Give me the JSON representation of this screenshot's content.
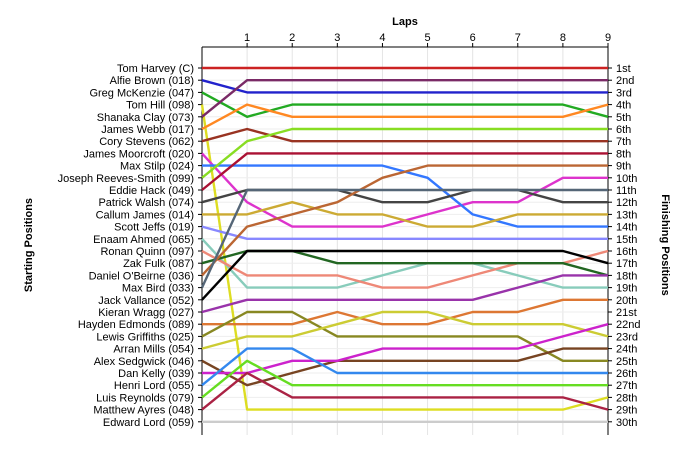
{
  "chart_data": {
    "type": "line",
    "title": "",
    "xlabel": "Laps",
    "ylabel_left": "Starting Positions",
    "ylabel_right": "Finishing Positions",
    "laps": [
      0,
      1,
      2,
      3,
      4,
      5,
      6,
      7,
      8,
      9
    ],
    "lap_tick_labels": [
      "1",
      "2",
      "3",
      "4",
      "5",
      "6",
      "7",
      "8",
      "9"
    ],
    "finishing_labels": [
      "1st",
      "2nd",
      "3rd",
      "4th",
      "5th",
      "6th",
      "7th",
      "8th",
      "9th",
      "10th",
      "11th",
      "12th",
      "13th",
      "14th",
      "15th",
      "16th",
      "17th",
      "18th",
      "19th",
      "20th",
      "21st",
      "22nd",
      "23rd",
      "24th",
      "25th",
      "26th",
      "27th",
      "28th",
      "29th",
      "30th"
    ],
    "series": [
      {
        "name": "Tom Harvey (C)",
        "color": "#cc2222",
        "positions": [
          1,
          1,
          1,
          1,
          1,
          1,
          1,
          1,
          1,
          1
        ]
      },
      {
        "name": "Alfie Brown (018)",
        "color": "#2222cc",
        "positions": [
          2,
          3,
          3,
          3,
          3,
          3,
          3,
          3,
          3,
          3
        ]
      },
      {
        "name": "Greg McKenzie (047)",
        "color": "#22aa22",
        "positions": [
          3,
          5,
          4,
          4,
          4,
          4,
          4,
          4,
          4,
          5
        ]
      },
      {
        "name": "Tom Hill (098)",
        "color": "#dddd22",
        "positions": [
          4,
          29,
          29,
          29,
          29,
          29,
          29,
          29,
          29,
          28
        ]
      },
      {
        "name": "Shanaka Clay (073)",
        "color": "#7a2a66",
        "positions": [
          5,
          2,
          2,
          2,
          2,
          2,
          2,
          2,
          2,
          2
        ]
      },
      {
        "name": "James Webb (017)",
        "color": "#ff8822",
        "positions": [
          6,
          4,
          5,
          5,
          5,
          5,
          5,
          5,
          5,
          4
        ]
      },
      {
        "name": "Cory Stevens (062)",
        "color": "#993322",
        "positions": [
          7,
          6,
          7,
          7,
          7,
          7,
          7,
          7,
          7,
          7
        ]
      },
      {
        "name": "James Moorcroft (020)",
        "color": "#dd33cc",
        "positions": [
          8,
          12,
          14,
          14,
          14,
          13,
          12,
          12,
          10,
          10
        ]
      },
      {
        "name": "Max Stilp (024)",
        "color": "#3377ff",
        "positions": [
          9,
          9,
          9,
          9,
          9,
          10,
          13,
          14,
          14,
          14
        ]
      },
      {
        "name": "Joseph Reeves-Smith (099)",
        "color": "#88dd22",
        "positions": [
          10,
          7,
          6,
          6,
          6,
          6,
          6,
          6,
          6,
          6
        ]
      },
      {
        "name": "Eddie Hack (049)",
        "color": "#aa1133",
        "positions": [
          11,
          8,
          8,
          8,
          8,
          8,
          8,
          8,
          8,
          8
        ]
      },
      {
        "name": "Patrick Walsh (074)",
        "color": "#444444",
        "positions": [
          12,
          11,
          11,
          11,
          12,
          12,
          11,
          11,
          12,
          12
        ]
      },
      {
        "name": "Callum James (014)",
        "color": "#ccaa33",
        "positions": [
          13,
          13,
          12,
          13,
          13,
          14,
          14,
          13,
          13,
          13
        ]
      },
      {
        "name": "Scott Jeffs (019)",
        "color": "#8888ff",
        "positions": [
          14,
          15,
          15,
          15,
          15,
          15,
          15,
          15,
          15,
          15
        ]
      },
      {
        "name": "Enaam Ahmed (065)",
        "color": "#88ccbb",
        "positions": [
          15,
          19,
          19,
          19,
          18,
          17,
          17,
          18,
          19,
          19
        ]
      },
      {
        "name": "Ronan Quinn (097)",
        "color": "#ee8877",
        "positions": [
          16,
          18,
          18,
          18,
          19,
          19,
          18,
          17,
          17,
          16
        ]
      },
      {
        "name": "Zak Fulk (087)",
        "color": "#226622",
        "positions": [
          17,
          16,
          16,
          17,
          17,
          17,
          17,
          17,
          17,
          18
        ]
      },
      {
        "name": "Daniel O'Beirne (036)",
        "color": "#bb6633",
        "positions": [
          18,
          14,
          13,
          12,
          10,
          9,
          9,
          9,
          9,
          9
        ]
      },
      {
        "name": "Max Bird (033)",
        "color": "#556677",
        "positions": [
          19,
          11,
          11,
          11,
          11,
          11,
          11,
          11,
          11,
          11
        ]
      },
      {
        "name": "Jack Vallance (052)",
        "color": "#000000",
        "positions": [
          20,
          16,
          16,
          16,
          16,
          16,
          16,
          16,
          16,
          17
        ]
      },
      {
        "name": "Kieran Wragg (027)",
        "color": "#9933aa",
        "positions": [
          21,
          20,
          20,
          20,
          20,
          20,
          20,
          19,
          18,
          18
        ]
      },
      {
        "name": "Hayden Edmonds (089)",
        "color": "#dd7733",
        "positions": [
          22,
          22,
          22,
          21,
          22,
          22,
          21,
          21,
          20,
          20
        ]
      },
      {
        "name": "Lewis Griffiths (025)",
        "color": "#888822",
        "positions": [
          23,
          21,
          21,
          23,
          23,
          23,
          23,
          23,
          25,
          25
        ]
      },
      {
        "name": "Arran Mills (054)",
        "color": "#cccc33",
        "positions": [
          24,
          23,
          23,
          22,
          21,
          21,
          22,
          22,
          22,
          23
        ]
      },
      {
        "name": "Alex Sedgwick (046)",
        "color": "#774422",
        "positions": [
          25,
          27,
          26,
          25,
          25,
          25,
          25,
          25,
          24,
          24
        ]
      },
      {
        "name": "Dan Kelly (039)",
        "color": "#cc22cc",
        "positions": [
          26,
          26,
          25,
          25,
          24,
          24,
          24,
          24,
          23,
          22
        ]
      },
      {
        "name": "Henri Lord (055)",
        "color": "#3388ee",
        "positions": [
          27,
          24,
          24,
          26,
          26,
          26,
          26,
          26,
          26,
          26
        ]
      },
      {
        "name": "Luis Reynolds (079)",
        "color": "#66dd22",
        "positions": [
          28,
          25,
          27,
          27,
          27,
          27,
          27,
          27,
          27,
          27
        ]
      },
      {
        "name": "Matthew Ayres (048)",
        "color": "#aa2244",
        "positions": [
          29,
          26,
          28,
          28,
          28,
          28,
          28,
          28,
          28,
          29
        ]
      },
      {
        "name": "Edward Lord (059)",
        "color": "#cccccc",
        "positions": [
          30,
          30,
          30,
          30,
          30,
          30,
          30,
          30,
          30,
          30
        ]
      }
    ],
    "grid": true
  }
}
